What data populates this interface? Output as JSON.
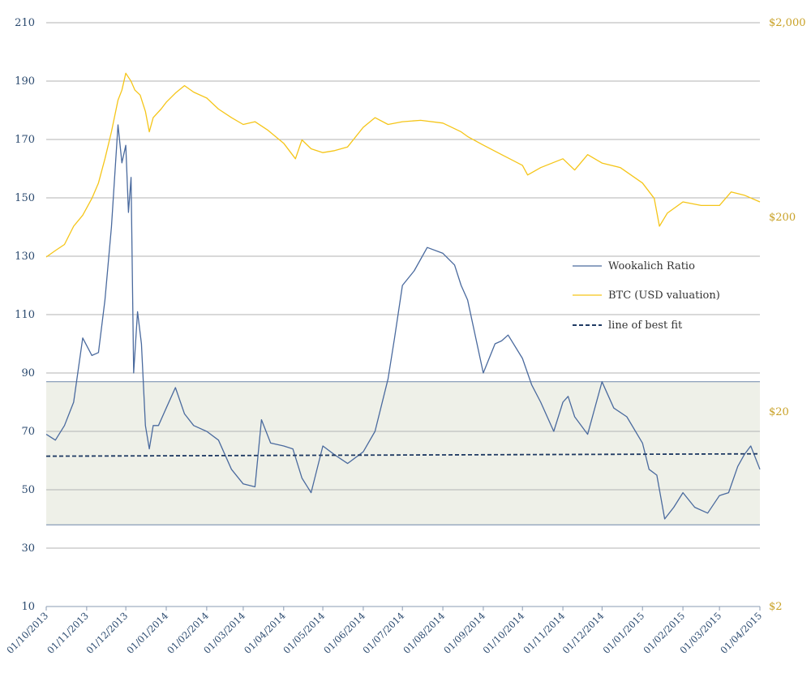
{
  "colors": {
    "ratio": "#4a6a9e",
    "btc": "#f5c518",
    "fit": "#1f3a63",
    "band_fill": "#eef0e8",
    "band_edge": "#6f86a8",
    "grid": "#b3b3b3",
    "left_text": "#2b4a6f",
    "right_text": "#c9a228"
  },
  "chart_data": {
    "type": "line",
    "title": "",
    "xlabel": "",
    "ylabel_left": "",
    "ylabel_right": "",
    "x_ticks": [
      "01/10/2013",
      "01/11/2013",
      "01/12/2013",
      "01/01/2014",
      "01/02/2014",
      "01/03/2014",
      "01/04/2014",
      "01/05/2014",
      "01/06/2014",
      "01/07/2014",
      "01/08/2014",
      "01/09/2014",
      "01/10/2014",
      "01/11/2014",
      "01/12/2014",
      "01/01/2015",
      "01/02/2015",
      "01/03/2015",
      "01/04/2015"
    ],
    "x_range": [
      "01/10/2013",
      "01/04/2015"
    ],
    "y_left": {
      "ticks": [
        10,
        30,
        50,
        70,
        90,
        110,
        130,
        150,
        170,
        190,
        210
      ],
      "range": [
        10,
        210
      ]
    },
    "y_right": {
      "scale": "log",
      "ticks": [
        "$2",
        "$20",
        "$200",
        "$2,000"
      ],
      "tick_values": [
        2,
        20,
        200,
        2000
      ],
      "range": [
        2,
        2000
      ]
    },
    "grid": true,
    "legend_position": "center-right",
    "band": {
      "y_left_range": [
        38,
        87
      ]
    },
    "series": [
      {
        "name": "Wookalich Ratio",
        "axis": "left",
        "x": [
          "01/10/2013",
          "08/10/2013",
          "15/10/2013",
          "22/10/2013",
          "29/10/2013",
          "05/11/2013",
          "10/11/2013",
          "15/11/2013",
          "20/11/2013",
          "25/11/2013",
          "28/11/2013",
          "01/12/2013",
          "03/12/2013",
          "05/12/2013",
          "07/12/2013",
          "10/12/2013",
          "13/12/2013",
          "16/12/2013",
          "19/12/2013",
          "22/12/2013",
          "26/12/2013",
          "01/01/2014",
          "08/01/2014",
          "15/01/2014",
          "22/01/2014",
          "01/02/2014",
          "10/02/2014",
          "20/02/2014",
          "01/03/2014",
          "10/03/2014",
          "15/03/2014",
          "22/03/2014",
          "01/04/2014",
          "08/04/2014",
          "15/04/2014",
          "22/04/2014",
          "01/05/2014",
          "10/05/2014",
          "20/05/2014",
          "01/06/2014",
          "10/06/2014",
          "20/06/2014",
          "25/06/2014",
          "01/07/2014",
          "10/07/2014",
          "20/07/2014",
          "01/08/2014",
          "10/08/2014",
          "15/08/2014",
          "20/08/2014",
          "01/09/2014",
          "10/09/2014",
          "15/09/2014",
          "20/09/2014",
          "01/10/2014",
          "08/10/2014",
          "15/10/2014",
          "25/10/2014",
          "01/11/2014",
          "05/11/2014",
          "10/11/2014",
          "20/11/2014",
          "01/12/2014",
          "10/12/2014",
          "20/12/2014",
          "01/01/2015",
          "06/01/2015",
          "12/01/2015",
          "18/01/2015",
          "25/01/2015",
          "01/02/2015",
          "10/02/2015",
          "20/02/2015",
          "01/03/2015",
          "08/03/2015",
          "15/03/2015",
          "20/03/2015",
          "25/03/2015",
          "01/04/2015"
        ],
        "y": [
          69,
          67,
          72,
          80,
          102,
          96,
          97,
          115,
          140,
          175,
          162,
          168,
          145,
          157,
          90,
          111,
          100,
          72,
          64,
          72,
          72,
          78,
          85,
          76,
          72,
          70,
          67,
          57,
          52,
          51,
          74,
          66,
          65,
          64,
          54,
          49,
          65,
          62,
          59,
          63,
          70,
          88,
          102,
          120,
          125,
          133,
          131,
          127,
          120,
          115,
          90,
          100,
          101,
          103,
          95,
          86,
          80,
          70,
          80,
          82,
          75,
          69,
          87,
          78,
          75,
          66,
          57,
          55,
          40,
          44,
          49,
          44,
          42,
          48,
          49,
          58,
          62,
          65,
          57
        ]
      },
      {
        "name": "BTC (USD valuation)",
        "axis": "right",
        "x": [
          "01/10/2013",
          "08/10/2013",
          "15/10/2013",
          "22/10/2013",
          "29/10/2013",
          "05/11/2013",
          "10/11/2013",
          "15/11/2013",
          "20/11/2013",
          "25/11/2013",
          "28/11/2013",
          "01/12/2013",
          "05/12/2013",
          "08/12/2013",
          "12/12/2013",
          "16/12/2013",
          "19/12/2013",
          "22/12/2013",
          "28/12/2013",
          "01/01/2014",
          "08/01/2014",
          "15/01/2014",
          "22/01/2014",
          "01/02/2014",
          "10/02/2014",
          "20/02/2014",
          "01/03/2014",
          "10/03/2014",
          "20/03/2014",
          "01/04/2014",
          "10/04/2014",
          "15/04/2014",
          "22/04/2014",
          "01/05/2014",
          "10/05/2014",
          "20/05/2014",
          "01/06/2014",
          "10/06/2014",
          "20/06/2014",
          "01/07/2014",
          "15/07/2014",
          "01/08/2014",
          "15/08/2014",
          "20/08/2014",
          "01/09/2014",
          "15/09/2014",
          "01/10/2014",
          "05/10/2014",
          "15/10/2014",
          "01/11/2014",
          "10/11/2014",
          "20/11/2014",
          "01/12/2014",
          "15/12/2014",
          "01/01/2015",
          "10/01/2015",
          "14/01/2015",
          "20/01/2015",
          "01/02/2015",
          "15/02/2015",
          "01/03/2015",
          "10/03/2015",
          "20/03/2015",
          "01/04/2015"
        ],
        "y": [
          125,
          135,
          145,
          180,
          205,
          250,
          300,
          400,
          550,
          800,
          900,
          1100,
          1000,
          900,
          850,
          700,
          550,
          650,
          720,
          780,
          870,
          950,
          880,
          820,
          720,
          650,
          600,
          620,
          560,
          480,
          400,
          500,
          450,
          430,
          440,
          460,
          580,
          650,
          600,
          620,
          630,
          610,
          550,
          520,
          470,
          420,
          370,
          330,
          360,
          400,
          350,
          420,
          380,
          360,
          300,
          250,
          180,
          210,
          240,
          230,
          230,
          270,
          260,
          240
        ]
      },
      {
        "name": "line of best fit",
        "axis": "left",
        "style": "dashed",
        "x": [
          "01/10/2013",
          "01/04/2015"
        ],
        "y": [
          61.5,
          62.3
        ]
      }
    ]
  }
}
